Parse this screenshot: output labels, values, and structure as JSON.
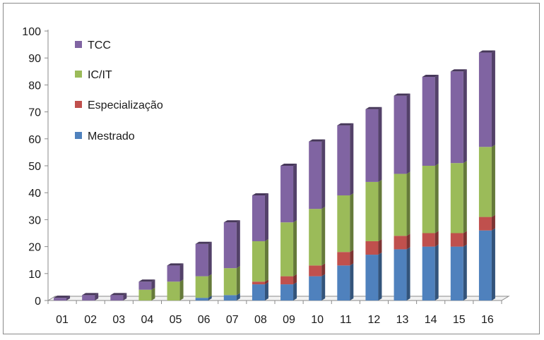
{
  "chart_data": {
    "type": "bar",
    "stacked": true,
    "categories": [
      "01",
      "02",
      "03",
      "04",
      "05",
      "06",
      "07",
      "08",
      "09",
      "10",
      "11",
      "12",
      "13",
      "14",
      "15",
      "16"
    ],
    "series": [
      {
        "name": "Mestrado",
        "color": "#4f81bd",
        "values": [
          0,
          0,
          0,
          0,
          0,
          1,
          2,
          6,
          6,
          9,
          13,
          17,
          19,
          20,
          20,
          26
        ]
      },
      {
        "name": "Especialização",
        "color": "#c0504d",
        "values": [
          0,
          0,
          0,
          0,
          0,
          0,
          0,
          1,
          3,
          4,
          5,
          5,
          5,
          5,
          5,
          5
        ]
      },
      {
        "name": "IC/IT",
        "color": "#9bbb59",
        "values": [
          0,
          0,
          0,
          4,
          7,
          8,
          10,
          15,
          20,
          21,
          21,
          22,
          23,
          25,
          26,
          26
        ]
      },
      {
        "name": "TCC",
        "color": "#8064a2",
        "values": [
          1,
          2,
          2,
          3,
          6,
          12,
          17,
          17,
          21,
          25,
          26,
          27,
          29,
          33,
          34,
          35
        ]
      }
    ],
    "legend_order": [
      "TCC",
      "IC/IT",
      "Especialização",
      "Mestrado"
    ],
    "legend_position": "top-left",
    "yticks": [
      "0",
      "10",
      "20",
      "30",
      "40",
      "50",
      "60",
      "70",
      "80",
      "90",
      "100"
    ],
    "ylim": [
      0,
      100
    ],
    "grid": false,
    "style": "3d-column"
  }
}
